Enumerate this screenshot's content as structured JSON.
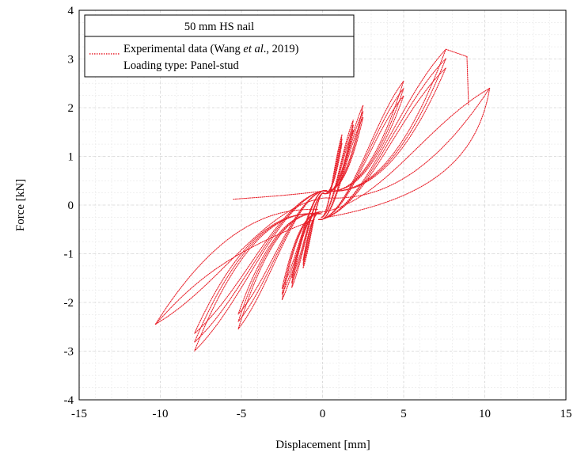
{
  "chart_data": {
    "type": "line",
    "xlabel": "Displacement [mm]",
    "ylabel": "Force [kN]",
    "xlim": [
      -15,
      15
    ],
    "ylim": [
      -4,
      4
    ],
    "xticks": [
      -15,
      -10,
      -5,
      0,
      5,
      10,
      15
    ],
    "yticks": [
      -4,
      -3,
      -2,
      -1,
      0,
      1,
      2,
      3,
      4
    ],
    "xtick_labels": [
      "-15",
      "-10",
      "-5",
      "0",
      "5",
      "10",
      "15"
    ],
    "ytick_labels": [
      "-4",
      "-3",
      "-2",
      "-1",
      "0",
      "1",
      "2",
      "3",
      "4"
    ],
    "grid": true,
    "minor_grid": true,
    "legend_position": "top-left",
    "legend": {
      "title": "50 mm HS nail",
      "entry_prefix": "Experimental data (Wang ",
      "entry_italic": "et al",
      "entry_suffix": "., 2019)",
      "line2": "Loading type: Panel-stud"
    },
    "series_color": "#e8202a",
    "series": [
      {
        "name": "Experimental data (Wang et al., 2019)",
        "style": "dotted",
        "cycles": [
          {
            "amp_pos": 1.2,
            "fmax_pos": 1.45,
            "amp_neg": -1.2,
            "fmin_neg": -1.3,
            "pinch": 0.25,
            "reps": 3
          },
          {
            "amp_pos": 1.9,
            "fmax_pos": 1.75,
            "amp_neg": -1.9,
            "fmin_neg": -1.7,
            "pinch": 0.25,
            "reps": 3
          },
          {
            "amp_pos": 2.5,
            "fmax_pos": 2.05,
            "amp_neg": -2.5,
            "fmin_neg": -1.95,
            "pinch": 0.3,
            "reps": 3
          },
          {
            "amp_pos": 5.0,
            "fmax_pos": 2.55,
            "amp_neg": -5.2,
            "fmin_neg": -2.55,
            "pinch": 0.3,
            "reps": 3
          },
          {
            "amp_pos": 7.6,
            "fmax_pos": 3.2,
            "amp_neg": -7.9,
            "fmin_neg": -3.0,
            "pinch": 0.3,
            "reps": 3
          },
          {
            "amp_pos": 10.3,
            "fmax_pos": 2.4,
            "amp_neg": -10.3,
            "fmin_neg": -2.45,
            "pinch": 0.15,
            "reps": 1
          }
        ],
        "drop_points": [
          {
            "x": 7.6,
            "y": 3.2
          },
          {
            "x": 8.9,
            "y": 3.05
          },
          {
            "x": 9.0,
            "y": 2.05
          },
          {
            "x": -7.9,
            "y": -3.0
          },
          {
            "x": -10.3,
            "y": -2.45
          }
        ]
      }
    ]
  }
}
